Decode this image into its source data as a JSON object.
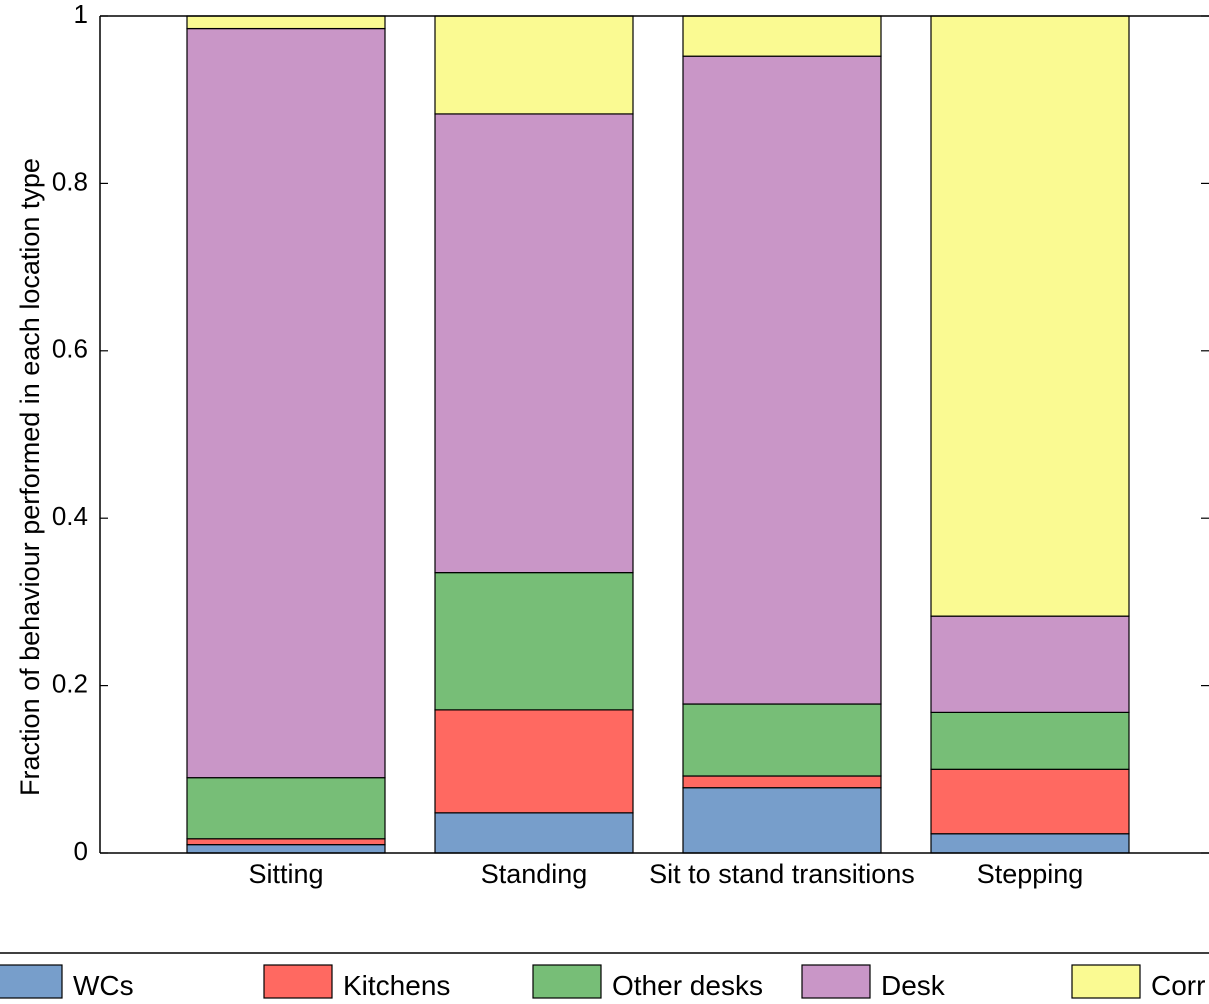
{
  "chart_data": {
    "type": "bar",
    "stacked": true,
    "ylabel": "Fraction of behaviour performed in each location type",
    "xlabel": "",
    "ylim": [
      0,
      1
    ],
    "yticks": [
      {
        "value": 0,
        "label": "0"
      },
      {
        "value": 0.2,
        "label": "0.2"
      },
      {
        "value": 0.4,
        "label": "0.4"
      },
      {
        "value": 0.6,
        "label": "0.6"
      },
      {
        "value": 0.8,
        "label": "0.8"
      },
      {
        "value": 1,
        "label": "1"
      }
    ],
    "categories": [
      "Sitting",
      "Standing",
      "Sit to stand transitions",
      "Stepping"
    ],
    "series": [
      {
        "name": "WCs",
        "color": "#779ECB",
        "values": [
          0.01,
          0.048,
          0.078,
          0.023
        ]
      },
      {
        "name": "Kitchens",
        "color": "#FF6961",
        "values": [
          0.007,
          0.123,
          0.014,
          0.077
        ]
      },
      {
        "name": "Other desks",
        "color": "#77BE77",
        "values": [
          0.073,
          0.164,
          0.086,
          0.068
        ]
      },
      {
        "name": "Desk",
        "color": "#C996C7",
        "values": [
          0.895,
          0.548,
          0.774,
          0.115
        ]
      },
      {
        "name": "Corr",
        "color": "#FAFA92",
        "values": [
          0.015,
          0.117,
          0.048,
          0.717
        ]
      }
    ],
    "grid": false,
    "legend_position": "bottom"
  }
}
